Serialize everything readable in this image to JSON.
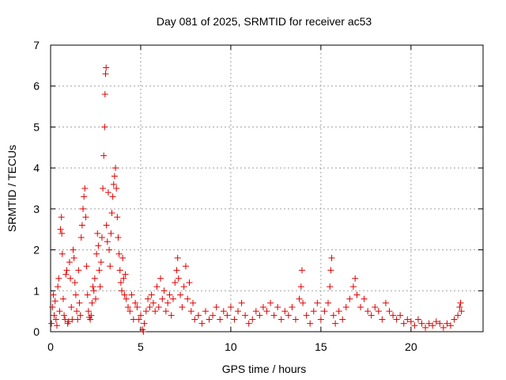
{
  "chart_data": {
    "type": "scatter",
    "title": "Day 081 of 2025, SRMTID for receiver ac53",
    "xlabel": "GPS time / hours",
    "ylabel": "SRMTID / TECUs",
    "xlim": [
      0,
      24
    ],
    "ylim": [
      0,
      7
    ],
    "xticks": [
      0,
      5,
      10,
      15,
      20
    ],
    "yticks": [
      0,
      1,
      2,
      3,
      4,
      5,
      6,
      7
    ],
    "grid": true,
    "marker": "+",
    "series": [
      {
        "name": "SRMTID",
        "color": "#e00000",
        "points": [
          [
            0.05,
            0.2
          ],
          [
            0.1,
            0.6
          ],
          [
            0.15,
            0.9
          ],
          [
            0.2,
            0.4
          ],
          [
            0.25,
            0.75
          ],
          [
            0.3,
            0.3
          ],
          [
            0.35,
            0.15
          ],
          [
            0.4,
            1.1
          ],
          [
            0.45,
            1.3
          ],
          [
            0.5,
            0.5
          ],
          [
            0.55,
            2.5
          ],
          [
            0.6,
            2.8
          ],
          [
            0.62,
            2.4
          ],
          [
            0.65,
            1.9
          ],
          [
            0.7,
            0.8
          ],
          [
            0.75,
            0.4
          ],
          [
            0.8,
            0.3
          ],
          [
            0.85,
            1.4
          ],
          [
            0.9,
            1.5
          ],
          [
            0.95,
            0.2
          ],
          [
            1.0,
            0.25
          ],
          [
            1.05,
            1.7
          ],
          [
            1.1,
            1.3
          ],
          [
            1.15,
            0.6
          ],
          [
            1.2,
            0.3
          ],
          [
            1.25,
            2.0
          ],
          [
            1.3,
            1.8
          ],
          [
            1.35,
            1.2
          ],
          [
            1.4,
            0.9
          ],
          [
            1.45,
            0.5
          ],
          [
            1.5,
            0.3
          ],
          [
            1.55,
            1.5
          ],
          [
            1.6,
            0.7
          ],
          [
            1.65,
            0.4
          ],
          [
            1.7,
            2.3
          ],
          [
            1.75,
            2.6
          ],
          [
            1.8,
            3.0
          ],
          [
            1.85,
            3.3
          ],
          [
            1.9,
            3.5
          ],
          [
            1.95,
            2.8
          ],
          [
            2.0,
            1.6
          ],
          [
            2.05,
            0.9
          ],
          [
            2.1,
            0.5
          ],
          [
            2.15,
            0.35
          ],
          [
            2.2,
            0.3
          ],
          [
            2.25,
            0.4
          ],
          [
            2.3,
            0.7
          ],
          [
            2.35,
            1.1
          ],
          [
            2.4,
            1.0
          ],
          [
            2.45,
            1.3
          ],
          [
            2.5,
            0.8
          ],
          [
            2.55,
            1.9
          ],
          [
            2.6,
            2.4
          ],
          [
            2.65,
            2.1
          ],
          [
            2.7,
            1.5
          ],
          [
            2.75,
            1.1
          ],
          [
            2.8,
            1.7
          ],
          [
            2.85,
            2.3
          ],
          [
            2.9,
            3.5
          ],
          [
            2.95,
            4.3
          ],
          [
            3.0,
            5.0
          ],
          [
            3.02,
            5.8
          ],
          [
            3.05,
            6.3
          ],
          [
            3.08,
            6.45
          ],
          [
            3.1,
            2.6
          ],
          [
            3.15,
            2.2
          ],
          [
            3.2,
            3.4
          ],
          [
            3.25,
            2.0
          ],
          [
            3.3,
            1.6
          ],
          [
            3.35,
            2.4
          ],
          [
            3.4,
            2.9
          ],
          [
            3.45,
            3.3
          ],
          [
            3.5,
            3.6
          ],
          [
            3.55,
            3.8
          ],
          [
            3.6,
            4.0
          ],
          [
            3.65,
            3.5
          ],
          [
            3.7,
            2.8
          ],
          [
            3.75,
            2.3
          ],
          [
            3.8,
            1.9
          ],
          [
            3.85,
            1.5
          ],
          [
            3.9,
            1.2
          ],
          [
            3.95,
            1.0
          ],
          [
            4.0,
            1.8
          ],
          [
            4.05,
            1.3
          ],
          [
            4.1,
            0.9
          ],
          [
            4.15,
            1.4
          ],
          [
            4.2,
            0.8
          ],
          [
            4.3,
            0.6
          ],
          [
            4.4,
            0.5
          ],
          [
            4.5,
            0.9
          ],
          [
            4.6,
            0.3
          ],
          [
            4.7,
            0.7
          ],
          [
            4.8,
            0.6
          ],
          [
            4.9,
            0.3
          ],
          [
            5.0,
            0.4
          ],
          [
            5.1,
            0.05
          ],
          [
            5.15,
            0.0
          ],
          [
            5.2,
            0.2
          ],
          [
            5.3,
            0.5
          ],
          [
            5.4,
            0.8
          ],
          [
            5.5,
            0.6
          ],
          [
            5.6,
            0.9
          ],
          [
            5.7,
            0.7
          ],
          [
            5.8,
            0.5
          ],
          [
            5.9,
            1.1
          ],
          [
            6.0,
            0.6
          ],
          [
            6.1,
            1.3
          ],
          [
            6.2,
            0.8
          ],
          [
            6.3,
            1.0
          ],
          [
            6.4,
            0.5
          ],
          [
            6.5,
            0.7
          ],
          [
            6.6,
            0.9
          ],
          [
            6.7,
            0.4
          ],
          [
            6.8,
            0.8
          ],
          [
            6.9,
            1.2
          ],
          [
            7.0,
            1.5
          ],
          [
            7.05,
            1.8
          ],
          [
            7.1,
            1.3
          ],
          [
            7.2,
            0.9
          ],
          [
            7.3,
            0.6
          ],
          [
            7.4,
            1.1
          ],
          [
            7.5,
            1.6
          ],
          [
            7.6,
            0.8
          ],
          [
            7.7,
            1.2
          ],
          [
            7.8,
            0.5
          ],
          [
            7.9,
            0.7
          ],
          [
            8.0,
            0.3
          ],
          [
            8.2,
            0.4
          ],
          [
            8.4,
            0.2
          ],
          [
            8.6,
            0.5
          ],
          [
            8.8,
            0.3
          ],
          [
            9.0,
            0.4
          ],
          [
            9.2,
            0.6
          ],
          [
            9.4,
            0.3
          ],
          [
            9.6,
            0.5
          ],
          [
            9.8,
            0.4
          ],
          [
            10.0,
            0.6
          ],
          [
            10.2,
            0.3
          ],
          [
            10.4,
            0.5
          ],
          [
            10.6,
            0.7
          ],
          [
            10.8,
            0.4
          ],
          [
            11.0,
            0.2
          ],
          [
            11.2,
            0.3
          ],
          [
            11.4,
            0.5
          ],
          [
            11.6,
            0.4
          ],
          [
            11.8,
            0.6
          ],
          [
            12.0,
            0.5
          ],
          [
            12.2,
            0.7
          ],
          [
            12.4,
            0.4
          ],
          [
            12.6,
            0.6
          ],
          [
            12.8,
            0.3
          ],
          [
            13.0,
            0.5
          ],
          [
            13.2,
            0.4
          ],
          [
            13.4,
            0.6
          ],
          [
            13.6,
            0.3
          ],
          [
            13.8,
            0.8
          ],
          [
            13.9,
            1.1
          ],
          [
            13.95,
            1.5
          ],
          [
            14.0,
            0.7
          ],
          [
            14.2,
            0.4
          ],
          [
            14.4,
            0.2
          ],
          [
            14.6,
            0.5
          ],
          [
            14.8,
            0.7
          ],
          [
            15.0,
            0.3
          ],
          [
            15.2,
            0.5
          ],
          [
            15.4,
            0.7
          ],
          [
            15.5,
            1.1
          ],
          [
            15.55,
            1.5
          ],
          [
            15.6,
            1.8
          ],
          [
            15.7,
            0.4
          ],
          [
            15.8,
            0.2
          ],
          [
            16.0,
            0.5
          ],
          [
            16.2,
            0.3
          ],
          [
            16.4,
            0.6
          ],
          [
            16.6,
            0.8
          ],
          [
            16.8,
            1.1
          ],
          [
            16.9,
            1.3
          ],
          [
            17.0,
            0.9
          ],
          [
            17.2,
            0.6
          ],
          [
            17.4,
            0.8
          ],
          [
            17.6,
            0.5
          ],
          [
            17.8,
            0.4
          ],
          [
            18.0,
            0.6
          ],
          [
            18.2,
            0.5
          ],
          [
            18.4,
            0.3
          ],
          [
            18.6,
            0.7
          ],
          [
            18.8,
            0.5
          ],
          [
            19.0,
            0.4
          ],
          [
            19.2,
            0.3
          ],
          [
            19.4,
            0.4
          ],
          [
            19.6,
            0.2
          ],
          [
            19.8,
            0.3
          ],
          [
            20.0,
            0.25
          ],
          [
            20.2,
            0.15
          ],
          [
            20.4,
            0.3
          ],
          [
            20.6,
            0.2
          ],
          [
            20.8,
            0.1
          ],
          [
            21.0,
            0.2
          ],
          [
            21.2,
            0.15
          ],
          [
            21.4,
            0.25
          ],
          [
            21.6,
            0.2
          ],
          [
            21.8,
            0.1
          ],
          [
            22.0,
            0.2
          ],
          [
            22.2,
            0.15
          ],
          [
            22.4,
            0.3
          ],
          [
            22.6,
            0.4
          ],
          [
            22.7,
            0.6
          ],
          [
            22.75,
            0.7
          ],
          [
            22.8,
            0.5
          ]
        ]
      }
    ]
  }
}
